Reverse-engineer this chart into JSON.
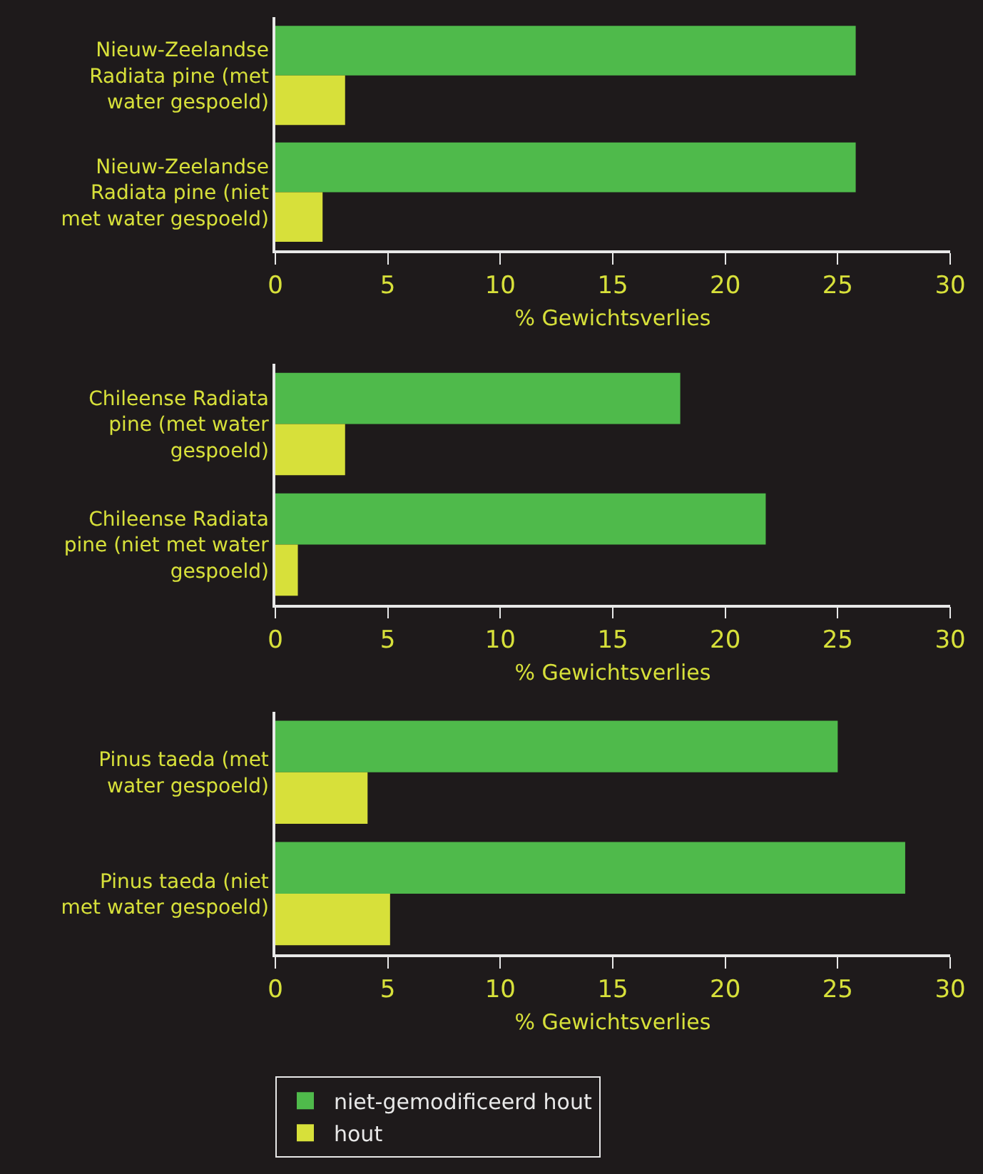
{
  "chart_data": [
    {
      "type": "bar",
      "orientation": "horizontal",
      "categories": [
        "Nieuw-Zeelandse Radiata pine (met water gespoeld)",
        "Nieuw-Zeelandse Radiata pine (niet met water gespoeld)"
      ],
      "series": [
        {
          "name": "niet-gemodificeerd hout",
          "color": "#4fba4b",
          "values": [
            25.8,
            25.8
          ]
        },
        {
          "name": "hout",
          "color": "#d7e03a",
          "values": [
            3.1,
            2.1
          ]
        }
      ],
      "xlabel": "% Gewichtsverlies",
      "xlim": [
        0,
        30
      ],
      "xticks": [
        0,
        5,
        10,
        15,
        20,
        25,
        30
      ],
      "grid": false,
      "legend": "bottom"
    },
    {
      "type": "bar",
      "orientation": "horizontal",
      "categories": [
        "Chileense Radiata pine (met water gespoeld)",
        "Chileense Radiata pine (niet met water gespoeld)"
      ],
      "series": [
        {
          "color": "#4fba4b",
          "values": [
            18.0,
            21.8
          ]
        },
        {
          "color": "#d7e03a",
          "values": [
            3.1,
            1.0
          ]
        }
      ],
      "xlabel": "% Gewichtsverlies",
      "xlim": [
        0,
        30
      ],
      "xticks": [
        0,
        5,
        10,
        15,
        20,
        25,
        30
      ],
      "grid": false
    },
    {
      "type": "bar",
      "orientation": "horizontal",
      "categories": [
        "Pinus taeda (met water gespoeld)",
        "Pinus taeda (niet met water gespoeld)"
      ],
      "series": [
        {
          "color": "#4fba4b",
          "values": [
            25.0,
            28.0
          ]
        },
        {
          "color": "#d7e03a",
          "values": [
            4.1,
            5.1
          ]
        }
      ],
      "xlabel": "% Gewichtsverlies",
      "xlim": [
        0,
        30
      ],
      "xticks": [
        0,
        5,
        10,
        15,
        20,
        25,
        30
      ],
      "grid": false
    }
  ]
}
